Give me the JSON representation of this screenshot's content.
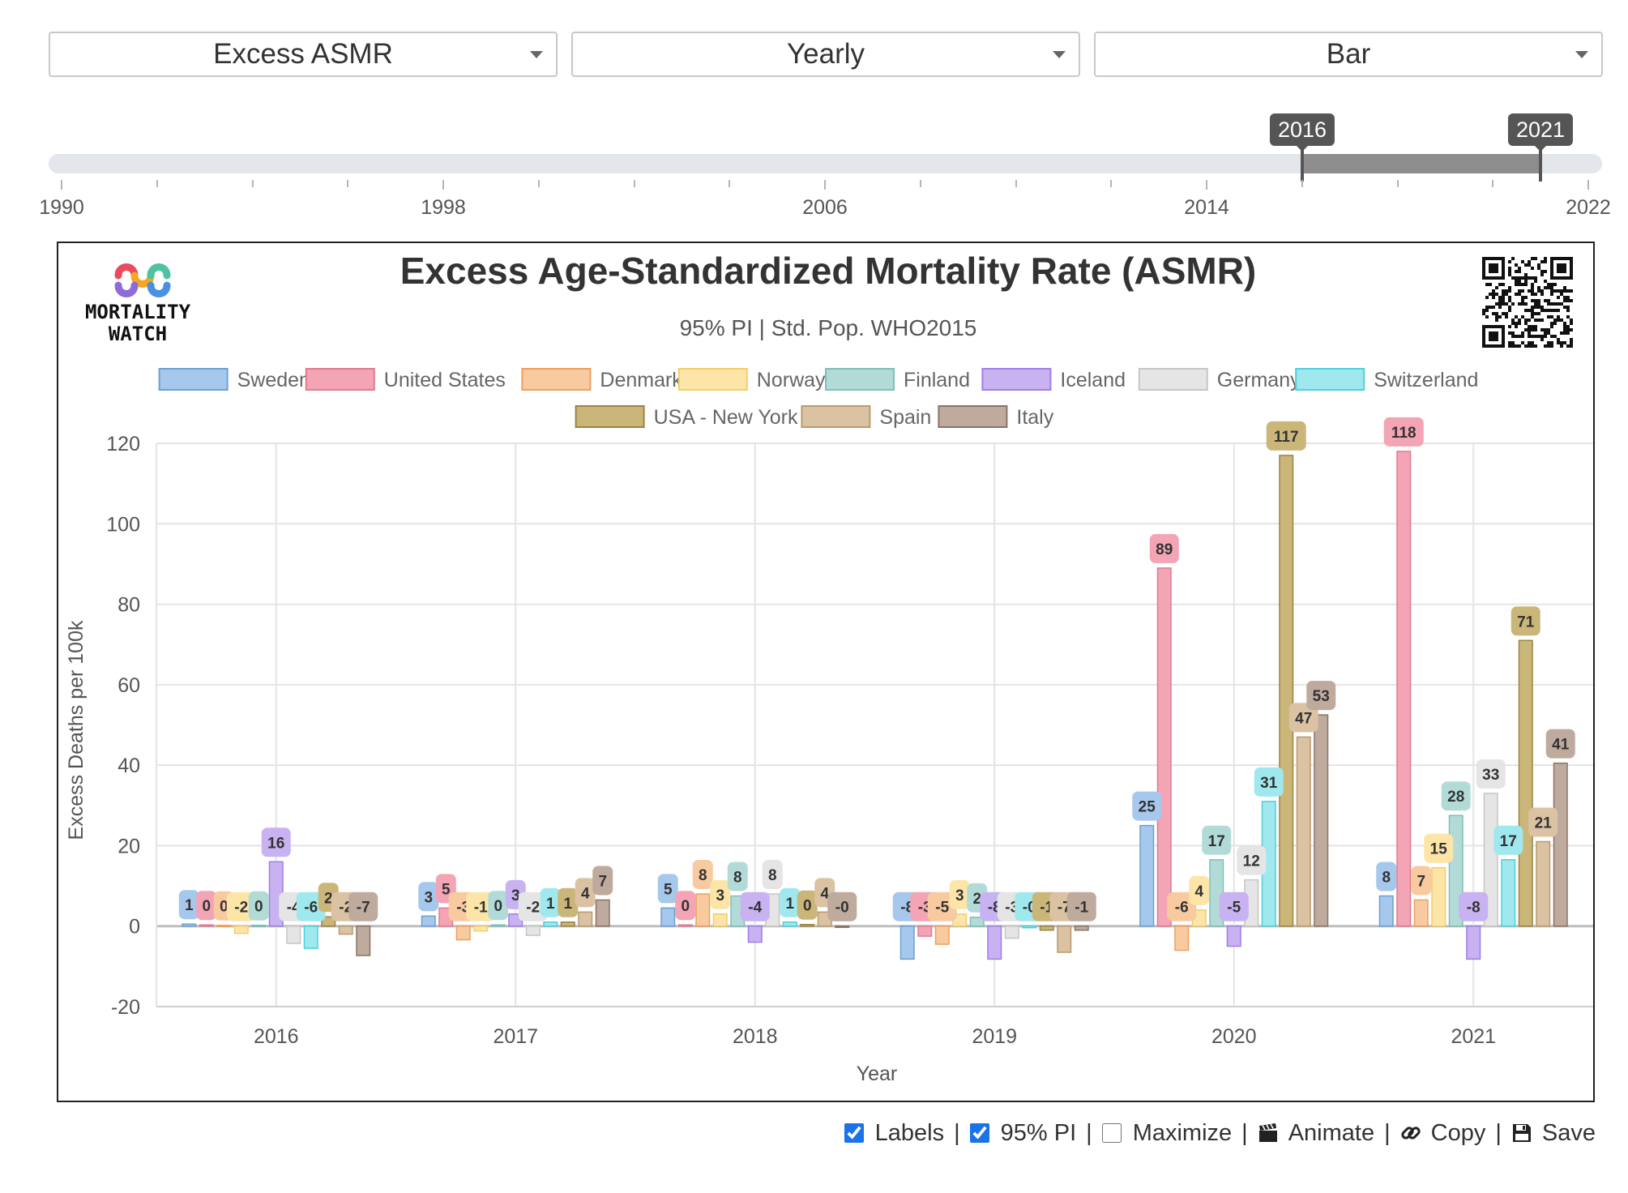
{
  "dropdowns": {
    "metric": "Excess ASMR",
    "period": "Yearly",
    "chart_type": "Bar"
  },
  "slider": {
    "from": "2016",
    "to": "2021",
    "ticks": [
      "1990",
      "1998",
      "2006",
      "2014",
      "2022"
    ],
    "range_start_year": 2016,
    "range_end_year": 2021,
    "min_year": 1990,
    "max_year": 2022
  },
  "logo": {
    "line1": "MORTALITY",
    "line2": "WATCH"
  },
  "controls": {
    "labels_label": "Labels",
    "labels_checked": true,
    "pi_label": "95% PI",
    "pi_checked": true,
    "maximize_label": "Maximize",
    "maximize_checked": false,
    "animate_label": "Animate",
    "copy_label": "Copy",
    "save_label": "Save",
    "separator": "|"
  },
  "chart_data": {
    "type": "bar",
    "title": "Excess Age-Standardized Mortality Rate (ASMR)",
    "subtitle": "95% PI | Std. Pop. WHO2015",
    "xlabel": "Year",
    "ylabel": "Excess Deaths per 100k",
    "ylim": [
      -20,
      120
    ],
    "yticks": [
      -20,
      0,
      20,
      40,
      60,
      80,
      100,
      120
    ],
    "grid": true,
    "legend_position": "top",
    "categories": [
      "2016",
      "2017",
      "2018",
      "2019",
      "2020",
      "2021"
    ],
    "series": [
      {
        "name": "Sweden",
        "color": "#a6c8ec",
        "stroke": "#6b9fd4",
        "values": [
          0.5,
          2.5,
          4.5,
          -8.2,
          25,
          7.5
        ],
        "labels": [
          "1",
          "3",
          "5",
          "-8",
          "25",
          "8"
        ]
      },
      {
        "name": "United States",
        "color": "#f3a4b5",
        "stroke": "#e07b91",
        "values": [
          0.3,
          4.5,
          0.3,
          -2.5,
          89,
          118
        ],
        "labels": [
          "0",
          "5",
          "0",
          "-3",
          "89",
          "118"
        ]
      },
      {
        "name": "Denmark",
        "color": "#f8caa0",
        "stroke": "#ee9f5e",
        "values": [
          0.2,
          -3.4,
          8,
          -4.5,
          -6,
          6.5
        ],
        "labels": [
          "0",
          "-3",
          "8",
          "-5",
          "-6",
          "7"
        ]
      },
      {
        "name": "Norway",
        "color": "#fde5a8",
        "stroke": "#f4cd6a",
        "values": [
          -1.8,
          -1.2,
          3,
          3,
          4,
          14.5
        ],
        "labels": [
          "-2",
          "-1",
          "3",
          "3",
          "4",
          "15"
        ]
      },
      {
        "name": "Finland",
        "color": "#b2dbd8",
        "stroke": "#7fbfba",
        "values": [
          0.2,
          0.3,
          7.5,
          2.2,
          16.5,
          27.5
        ],
        "labels": [
          "0",
          "0",
          "8",
          "2",
          "17",
          "28"
        ]
      },
      {
        "name": "Iceland",
        "color": "#c8b2f2",
        "stroke": "#9f7ee6",
        "values": [
          16,
          3,
          -4,
          -8.2,
          -5,
          -8.2
        ],
        "labels": [
          "16",
          "3",
          "-4",
          "-8",
          "-5",
          "-8"
        ]
      },
      {
        "name": "Germany",
        "color": "#e5e5e5",
        "stroke": "#c6c6c6",
        "values": [
          -4.3,
          -2.3,
          8,
          -3,
          11.5,
          33
        ],
        "labels": [
          "-4",
          "-2",
          "8",
          "-3",
          "12",
          "33"
        ]
      },
      {
        "name": "Switzerland",
        "color": "#9fe8ee",
        "stroke": "#4dd0dc",
        "values": [
          -5.5,
          1,
          1,
          -0.4,
          31,
          16.5
        ],
        "labels": [
          "-6",
          "1",
          "1",
          "-0",
          "31",
          "17"
        ]
      },
      {
        "name": "USA - New York",
        "color": "#cbb67a",
        "stroke": "#9b8440",
        "values": [
          2.3,
          1,
          0.4,
          -1,
          117,
          71
        ],
        "labels": [
          "2",
          "1",
          "0",
          "-1",
          "117",
          "71"
        ]
      },
      {
        "name": "Spain",
        "color": "#dbc2a2",
        "stroke": "#b89b70",
        "values": [
          -2,
          3.5,
          3.5,
          -6.5,
          47,
          21
        ],
        "labels": [
          "-2",
          "4",
          "4",
          "-7",
          "47",
          "21"
        ]
      },
      {
        "name": "Italy",
        "color": "#bfaa9e",
        "stroke": "#8b7366",
        "values": [
          -7.3,
          6.5,
          -0.3,
          -1,
          52.5,
          40.5
        ],
        "labels": [
          "-7",
          "7",
          "-0",
          "-1",
          "53",
          "41"
        ]
      }
    ]
  }
}
